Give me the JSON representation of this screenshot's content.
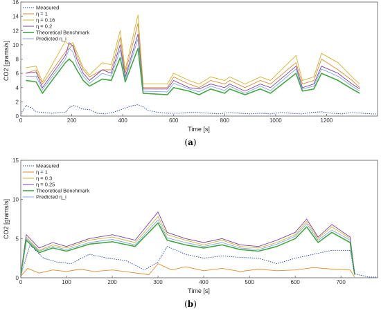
{
  "chart_data": [
    {
      "type": "line",
      "panel_label_open": "(",
      "panel_label_letter": "a",
      "panel_label_close": ")",
      "xlabel": "Time [s]",
      "ylabel": "CO2 [grams/s]",
      "xlim": [
        0,
        1400
      ],
      "ylim": [
        0,
        16
      ],
      "xticks": [
        0,
        200,
        400,
        600,
        800,
        1000,
        1200
      ],
      "yticks": [
        0,
        2,
        4,
        6,
        8,
        10,
        12,
        14,
        16
      ],
      "grid": false,
      "legend_position": "top-left",
      "series": [
        {
          "name": "Measured",
          "color": "#1f3fa8",
          "style": "dotted",
          "x": [
            0,
            20,
            40,
            60,
            90,
            120,
            150,
            175,
            190,
            210,
            240,
            270,
            300,
            330,
            360,
            400,
            430,
            460,
            480,
            500,
            540,
            580,
            620,
            660,
            700,
            740,
            780,
            820,
            860,
            900,
            940,
            980,
            1020,
            1060,
            1100,
            1140,
            1180,
            1220,
            1260,
            1300,
            1340,
            1380,
            1400
          ],
          "y": [
            0.3,
            1.5,
            1.2,
            0.6,
            0.5,
            0.4,
            0.5,
            0.5,
            1.2,
            1.5,
            1.0,
            0.9,
            0.4,
            0.3,
            0.5,
            1.0,
            1.4,
            1.6,
            1.3,
            0.8,
            0.5,
            0.4,
            0.4,
            0.5,
            0.5,
            0.4,
            0.3,
            0.5,
            0.4,
            0.3,
            0.4,
            0.3,
            0.5,
            0.4,
            0.3,
            0.5,
            0.6,
            0.4,
            0.3,
            0.5,
            0.4,
            0.3,
            0.3
          ]
        },
        {
          "name": "η = 1",
          "color": "#e08a2c",
          "style": "solid",
          "x": [
            20,
            60,
            85,
            175,
            190,
            205,
            220,
            245,
            270,
            320,
            355,
            390,
            410,
            460,
            480,
            575,
            600,
            660,
            700,
            745,
            800,
            820,
            880,
            940,
            980,
            1080,
            1105,
            1150,
            1180,
            1245,
            1300,
            1330
          ],
          "y": [
            6.0,
            6.5,
            4.5,
            9.0,
            9.5,
            10.0,
            8.5,
            6.5,
            5.5,
            6.5,
            6.5,
            11.0,
            6.0,
            13.0,
            4.0,
            4.0,
            5.5,
            4.5,
            4.0,
            5.0,
            4.5,
            5.0,
            4.0,
            5.0,
            4.5,
            7.5,
            4.5,
            5.0,
            8.0,
            6.5,
            5.0,
            4.0
          ]
        },
        {
          "name": "η = 0.16",
          "color": "#d4b22a",
          "style": "solid",
          "x": [
            20,
            60,
            85,
            175,
            190,
            205,
            220,
            245,
            270,
            320,
            355,
            390,
            410,
            460,
            480,
            575,
            600,
            660,
            700,
            745,
            800,
            820,
            880,
            940,
            980,
            1080,
            1105,
            1150,
            1180,
            1245,
            1300,
            1330
          ],
          "y": [
            6.8,
            7.0,
            4.8,
            10.5,
            10.0,
            10.3,
            9.0,
            6.8,
            5.8,
            7.5,
            7.2,
            12.0,
            6.5,
            14.2,
            4.5,
            4.5,
            6.0,
            5.0,
            4.5,
            5.5,
            5.0,
            5.5,
            4.5,
            5.5,
            5.0,
            8.5,
            5.0,
            5.5,
            8.8,
            7.5,
            5.5,
            4.5
          ]
        },
        {
          "name": "η = 0.2",
          "color": "#7b3fa8",
          "style": "solid",
          "x": [
            20,
            60,
            85,
            175,
            190,
            205,
            220,
            245,
            270,
            320,
            355,
            390,
            410,
            460,
            480,
            575,
            600,
            660,
            700,
            745,
            800,
            820,
            880,
            940,
            980,
            1080,
            1105,
            1150,
            1180,
            1245,
            1300,
            1330
          ],
          "y": [
            6.0,
            6.2,
            4.0,
            8.5,
            10.3,
            9.8,
            8.0,
            6.0,
            5.0,
            6.5,
            6.0,
            10.0,
            5.5,
            11.5,
            3.8,
            3.8,
            5.0,
            4.0,
            3.8,
            4.5,
            4.0,
            4.5,
            3.5,
            4.5,
            4.0,
            7.0,
            4.0,
            4.5,
            7.0,
            6.0,
            4.5,
            3.8
          ]
        },
        {
          "name": "Theoretical Benchmark",
          "color": "#3fa83f",
          "style": "solid",
          "x": [
            20,
            60,
            85,
            175,
            190,
            205,
            220,
            245,
            270,
            320,
            355,
            390,
            410,
            460,
            480,
            575,
            600,
            660,
            700,
            745,
            800,
            820,
            880,
            940,
            980,
            1080,
            1105,
            1150,
            1180,
            1245,
            1300,
            1330
          ],
          "y": [
            5.0,
            4.8,
            3.2,
            7.5,
            8.0,
            7.5,
            6.5,
            5.0,
            4.2,
            5.2,
            5.0,
            8.2,
            4.8,
            9.5,
            3.2,
            3.0,
            4.0,
            3.5,
            3.0,
            3.8,
            3.2,
            3.8,
            3.0,
            3.8,
            3.2,
            6.0,
            3.5,
            3.8,
            6.0,
            5.0,
            3.8,
            3.2
          ]
        },
        {
          "name": "Predicted η_i",
          "color": "#7fa7e8",
          "style": "solid",
          "x": [
            20,
            60,
            85,
            175,
            190,
            205,
            220,
            245,
            270,
            320,
            355,
            390,
            410,
            460,
            480,
            575,
            600,
            660,
            700,
            745,
            800,
            820,
            880,
            940,
            980,
            1080,
            1105,
            1150,
            1180,
            1245,
            1300,
            1330
          ],
          "y": [
            5.6,
            5.6,
            3.7,
            8.0,
            9.5,
            9.0,
            7.3,
            5.6,
            4.6,
            6.0,
            5.6,
            9.3,
            5.2,
            10.8,
            3.5,
            3.4,
            4.6,
            3.8,
            3.4,
            4.2,
            3.6,
            4.2,
            3.2,
            4.2,
            3.6,
            6.6,
            3.8,
            4.2,
            6.6,
            5.6,
            4.2,
            3.5
          ]
        }
      ]
    },
    {
      "type": "line",
      "panel_label_open": "(",
      "panel_label_letter": "b",
      "panel_label_close": ")",
      "xlabel": "Time [s]",
      "ylabel": "CO2 [grams/s]",
      "xlim": [
        0,
        780
      ],
      "ylim": [
        0,
        15
      ],
      "xticks": [
        0,
        100,
        200,
        300,
        400,
        500,
        600,
        700
      ],
      "yticks": [
        0,
        5,
        10,
        15
      ],
      "grid": false,
      "legend_position": "top-left",
      "series": [
        {
          "name": "Measured",
          "color": "#1f3fa8",
          "style": "dotted",
          "x": [
            0,
            20,
            50,
            80,
            110,
            150,
            190,
            230,
            270,
            300,
            320,
            360,
            400,
            440,
            480,
            520,
            560,
            600,
            640,
            680,
            720,
            730,
            760,
            780
          ],
          "y": [
            0.3,
            4.2,
            2.5,
            2.0,
            1.8,
            3.0,
            2.5,
            2.2,
            1.0,
            2.0,
            4.0,
            3.0,
            2.5,
            2.8,
            2.6,
            2.5,
            1.8,
            2.5,
            3.0,
            3.5,
            3.5,
            0.5,
            0.1,
            0.1
          ]
        },
        {
          "name": "η = 1",
          "color": "#e08a2c",
          "style": "solid",
          "x": [
            0,
            15,
            40,
            70,
            100,
            130,
            160,
            200,
            240,
            280,
            300,
            330,
            360,
            400,
            440,
            480,
            520,
            560,
            600,
            640,
            680,
            720,
            730
          ],
          "y": [
            0.2,
            1.2,
            0.6,
            1.0,
            0.8,
            1.1,
            0.8,
            1.0,
            0.7,
            0.4,
            1.8,
            1.0,
            1.4,
            0.9,
            1.2,
            0.8,
            1.1,
            0.9,
            1.0,
            1.3,
            1.1,
            1.0,
            0.1
          ]
        },
        {
          "name": "η = 0.3",
          "color": "#d4b22a",
          "style": "solid",
          "x": [
            0,
            12,
            40,
            70,
            100,
            150,
            200,
            250,
            300,
            320,
            360,
            400,
            440,
            480,
            520,
            560,
            600,
            625,
            650,
            680,
            720,
            730
          ],
          "y": [
            0.5,
            5.2,
            3.5,
            4.2,
            3.8,
            4.8,
            5.2,
            4.5,
            7.8,
            5.5,
            4.8,
            4.2,
            4.8,
            4.0,
            3.8,
            4.5,
            5.5,
            7.2,
            5.0,
            6.5,
            5.0,
            0.5
          ]
        },
        {
          "name": "η = 0.25",
          "color": "#7b3fa8",
          "style": "solid",
          "x": [
            0,
            12,
            40,
            70,
            100,
            150,
            200,
            250,
            300,
            320,
            360,
            400,
            440,
            480,
            520,
            560,
            600,
            625,
            650,
            680,
            720,
            730
          ],
          "y": [
            0.5,
            5.5,
            3.8,
            4.5,
            4.0,
            5.0,
            5.5,
            4.8,
            8.4,
            5.8,
            5.0,
            4.5,
            5.0,
            4.2,
            4.0,
            4.8,
            5.8,
            7.5,
            5.2,
            6.8,
            5.2,
            0.5
          ]
        },
        {
          "name": "Theoretical Benchmark",
          "color": "#3fa83f",
          "style": "solid",
          "x": [
            0,
            12,
            40,
            70,
            100,
            150,
            200,
            250,
            300,
            320,
            360,
            400,
            440,
            480,
            520,
            560,
            600,
            625,
            650,
            680,
            720,
            730
          ],
          "y": [
            0.4,
            4.8,
            3.2,
            3.8,
            3.4,
            4.3,
            4.6,
            4.0,
            7.0,
            4.8,
            4.2,
            3.8,
            4.2,
            3.6,
            3.4,
            4.0,
            5.0,
            6.5,
            4.5,
            5.8,
            4.5,
            0.4
          ]
        },
        {
          "name": "Predicted η_i",
          "color": "#7fa7e8",
          "style": "solid",
          "x": [
            0,
            12,
            40,
            70,
            100,
            150,
            200,
            250,
            300,
            320,
            360,
            400,
            440,
            480,
            520,
            560,
            600,
            625,
            650,
            680,
            720,
            730
          ],
          "y": [
            0.4,
            5.0,
            3.4,
            4.0,
            3.6,
            4.5,
            4.9,
            4.2,
            7.4,
            5.1,
            4.5,
            4.0,
            4.5,
            3.8,
            3.6,
            4.3,
            5.3,
            6.9,
            4.8,
            6.1,
            4.8,
            0.4
          ]
        }
      ]
    }
  ]
}
